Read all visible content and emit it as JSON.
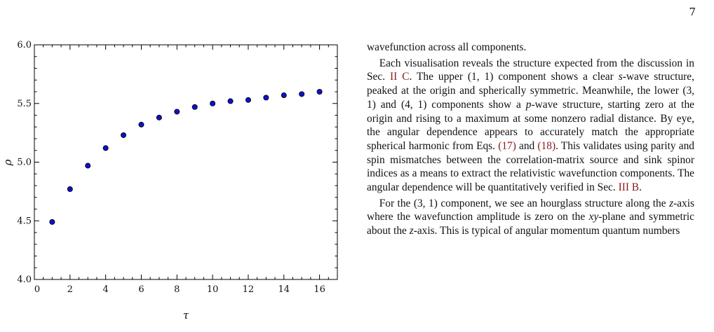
{
  "page": {
    "number": "7"
  },
  "chart_data": {
    "type": "scatter",
    "title": "",
    "xlabel": "τ",
    "ylabel": "ρ",
    "xlim": [
      0,
      17
    ],
    "ylim": [
      4.0,
      6.0
    ],
    "x_ticks": [
      0,
      2,
      4,
      6,
      8,
      10,
      12,
      14,
      16
    ],
    "y_ticks": [
      4.0,
      4.5,
      5.0,
      5.5,
      6.0
    ],
    "x_tick_labels": [
      "0",
      "2",
      "4",
      "6",
      "8",
      "10",
      "12",
      "14",
      "16"
    ],
    "y_tick_labels": [
      "4.0",
      "4.5",
      "5.0",
      "5.5",
      "6.0"
    ],
    "grid": false,
    "marker_color": "#1010c8",
    "series": [
      {
        "x": [
          1,
          2,
          3,
          4,
          5,
          6,
          7,
          8,
          9,
          10,
          11,
          12,
          13,
          14,
          15,
          16
        ],
        "y": [
          4.49,
          4.77,
          4.97,
          5.12,
          5.23,
          5.32,
          5.38,
          5.43,
          5.47,
          5.5,
          5.52,
          5.53,
          5.55,
          5.57,
          5.58,
          5.6
        ]
      }
    ]
  },
  "text": {
    "p0": "wavefunction across all components.",
    "p1": {
      "s1": "Each visualisation reveals the structure expected from the discussion in Sec.",
      "ref1": "II C",
      "s2": ". The upper",
      "m1": "(1, 1)",
      "s3": "component shows a clear",
      "m2": "s",
      "s4": "-wave structure, peaked at the origin and spherically symmetric. Meanwhile, the lower",
      "m3": "(3, 1)",
      "s5": "and",
      "m4": "(4, 1)",
      "s6": "components show a",
      "m5": "p",
      "s7": "-wave structure, starting zero at the origin and rising to a maximum at some nonzero radial distance. By eye, the angular dependence appears to accurately match the appropriate spherical harmonic from Eqs.",
      "ref2": "(17)",
      "s8": "and",
      "ref3": "(18)",
      "s9": ". This validates using parity and spin mismatches between the correlation-matrix source and sink spinor indices as a means to extract the relativistic wavefunction components. The angular dependence will be quantitatively verified in Sec.",
      "ref4": "III B",
      "s10": "."
    },
    "p2": {
      "s1": "For the",
      "m1": "(3, 1)",
      "s2": "component, we see an hourglass structure along the",
      "m2": "z",
      "s3": "-axis where the wavefunction amplitude is zero on the",
      "m3": "xy",
      "s4": "-plane and symmetric about the",
      "m4": "z",
      "s5": "-axis. This is typical of angular momentum quantum numbers"
    }
  }
}
